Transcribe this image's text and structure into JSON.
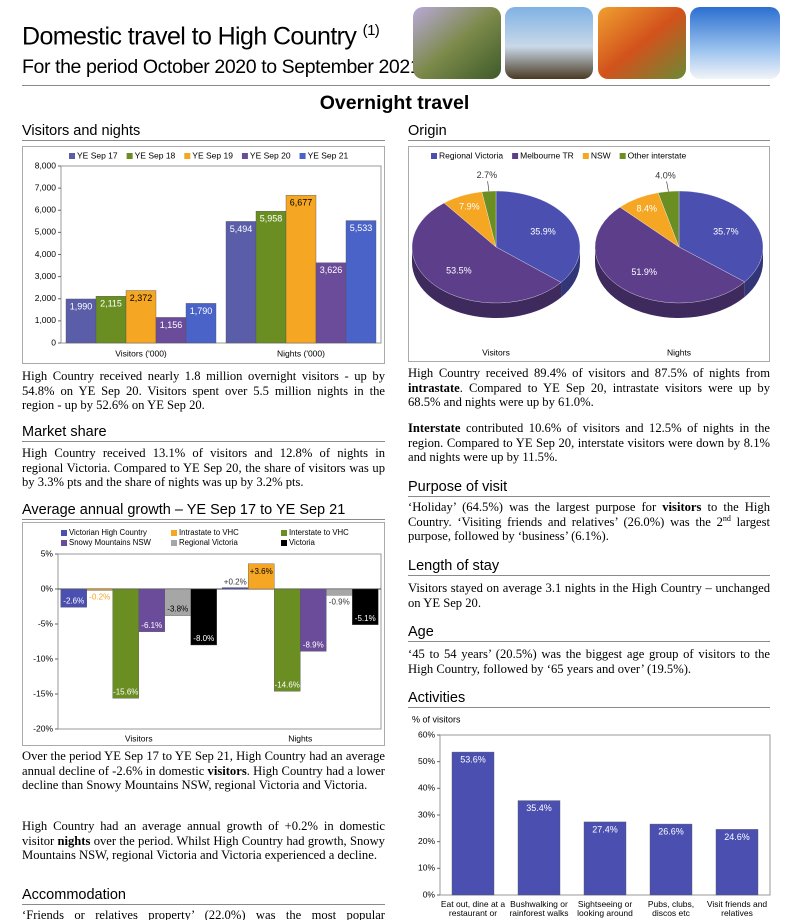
{
  "header": {
    "title": "Domestic travel to High Country",
    "footnote_ref": "(1)",
    "subtitle": "For the period October 2020 to September 2021"
  },
  "section_title": "Overnight travel",
  "sections": {
    "visitors_nights": {
      "heading": "Visitors and nights",
      "paragraphs": [
        [
          "High Country received nearly 1.8 million overnight visitors - up by 54.8% on YE Sep 20. Visitors spent over 5.5 million nights in the region - up by 52.6% on YE Sep 20."
        ]
      ]
    },
    "market_share": {
      "heading": "Market share",
      "paragraphs": [
        [
          "High Country received 13.1% of visitors and 12.8% of nights in regional Victoria. Compared to YE Sep 20, the share of visitors was up by 3.3% pts and the share of nights was up by 3.2% pts."
        ]
      ]
    },
    "growth": {
      "heading": "Average annual growth – YE Sep 17 to YE Sep 21",
      "paragraphs": [
        [
          "Over the period YE Sep 17 to YE Sep 21, High Country had an average annual decline of -2.6% in domestic ",
          "visitors",
          ". High Country had a lower decline than Snowy Mountains NSW, regional Victoria and Victoria."
        ],
        [
          "High Country had an average annual growth of +0.2% in domestic visitor ",
          "nights",
          " over the period. Whilst High Country had growth, Snowy Mountains NSW, regional Victoria and Victoria experienced a decline."
        ]
      ]
    },
    "accommodation": {
      "heading": "Accommodation",
      "paragraphs": [
        [
          "‘Friends or relatives property’ (22.0%) was the most popular"
        ]
      ]
    },
    "origin": {
      "heading": "Origin",
      "paragraphs": [
        [
          "High Country received 89.4% of visitors and 87.5% of nights from ",
          "intrastate",
          ". Compared to YE Sep 20, intrastate visitors were up by 68.5% and nights were up by 61.0%."
        ],
        [
          "Interstate",
          " contributed 10.6% of visitors and 12.5% of nights in the region. Compared to YE Sep 20, interstate visitors were down by 8.1% and nights were up by 11.5%."
        ]
      ]
    },
    "purpose": {
      "heading": "Purpose of visit",
      "paragraphs": [
        [
          "‘Holiday’ (64.5%) was the largest purpose for ",
          "visitors",
          " to the High Country. ‘Visiting friends and relatives’ (26.0%) was the 2",
          "nd",
          " largest purpose, followed by ‘business’ (6.1%)."
        ]
      ]
    },
    "length_of_stay": {
      "heading": "Length of stay",
      "paragraphs": [
        [
          "Visitors stayed on average 3.1 nights in the High Country – unchanged on YE Sep 20."
        ]
      ]
    },
    "age": {
      "heading": "Age",
      "paragraphs": [
        [
          "‘45 to 54 years’ (20.5%) was the biggest age group of visitors to the High Country, followed by ‘65 years and over’ (19.5%)."
        ]
      ]
    },
    "activities": {
      "heading": "Activities"
    }
  },
  "chart_data": [
    {
      "type": "bar",
      "categories": [
        "Visitors ('000)",
        "Nights ('000)"
      ],
      "series": [
        {
          "name": "YE Sep 17",
          "color": "#5a5ea8",
          "values": [
            1990,
            5494
          ],
          "value_labels": [
            "1,990",
            "5,494"
          ]
        },
        {
          "name": "YE Sep 18",
          "color": "#6b8e23",
          "values": [
            2115,
            5958
          ],
          "value_labels": [
            "2,115",
            "5,958"
          ]
        },
        {
          "name": "YE Sep 19",
          "color": "#f5a623",
          "values": [
            2372,
            6677
          ],
          "value_labels": [
            "2,372",
            "6,677"
          ]
        },
        {
          "name": "YE Sep 20",
          "color": "#6b4c9a",
          "values": [
            1156,
            3626
          ],
          "value_labels": [
            "1,156",
            "3,626"
          ]
        },
        {
          "name": "YE Sep 21",
          "color": "#4a63c9",
          "values": [
            1790,
            5533
          ],
          "value_labels": [
            "1,790",
            "5,533"
          ]
        }
      ],
      "ylim": [
        0,
        8000
      ],
      "yticks": [
        0,
        {
          "value": 1000,
          "label": "1,000"
        },
        {
          "value": 2000,
          "label": "2,000"
        },
        {
          "value": 3000,
          "label": "3,000"
        },
        {
          "value": 4000,
          "label": "4,000"
        },
        {
          "value": 5000,
          "label": "5,000"
        },
        {
          "value": 6000,
          "label": "6,000"
        },
        {
          "value": 7000,
          "label": "7,000"
        },
        {
          "value": 8000,
          "label": "8,000"
        }
      ]
    },
    {
      "type": "pie",
      "categories": [
        "Regional Victoria",
        "Melbourne TR",
        "NSW",
        "Other interstate"
      ],
      "colors": [
        "#4a4fb0",
        "#5c3e8a",
        "#f5a623",
        "#6b8e23"
      ],
      "series": [
        {
          "name": "Visitors",
          "values": [
            35.9,
            53.5,
            7.9,
            2.7
          ],
          "value_labels": [
            "35.9%",
            "53.5%",
            "7.9%",
            "2.7%"
          ]
        },
        {
          "name": "Nights",
          "values": [
            35.7,
            51.9,
            8.4,
            4.0
          ],
          "value_labels": [
            "35.7%",
            "51.9%",
            "8.4%",
            "4.0%"
          ]
        }
      ]
    },
    {
      "type": "bar",
      "categories": [
        "Visitors",
        "Nights"
      ],
      "series": [
        {
          "name": "Victorian High Country",
          "color": "#4a4fb0",
          "values": [
            -2.6,
            0.2
          ],
          "value_labels": [
            "-2.6%",
            "+0.2%"
          ]
        },
        {
          "name": "Intrastate to VHC",
          "color": "#f5a623",
          "values": [
            -0.2,
            3.6
          ],
          "value_labels": [
            "-0.2%",
            "+3.6%"
          ]
        },
        {
          "name": "Interstate to VHC",
          "color": "#6b8e23",
          "values": [
            -15.6,
            -14.6
          ],
          "value_labels": [
            "-15.6%",
            "-14.6%"
          ]
        },
        {
          "name": "Snowy Mountains NSW",
          "color": "#6b4c9a",
          "values": [
            -6.1,
            -8.9
          ],
          "value_labels": [
            "-6.1%",
            "-8.9%"
          ]
        },
        {
          "name": "Regional Victoria",
          "color": "#a6a6a6",
          "values": [
            -3.8,
            -0.9
          ],
          "value_labels": [
            "-3.8%",
            "-0.9%"
          ]
        },
        {
          "name": "Victoria",
          "color": "#000000",
          "values": [
            -8.0,
            -5.1
          ],
          "value_labels": [
            "-8.0%",
            "-5.1%"
          ]
        }
      ],
      "ylim": [
        -20,
        5
      ],
      "yticks": [
        {
          "value": 5,
          "label": "5%"
        },
        {
          "value": 0,
          "label": "0%"
        },
        {
          "value": -5,
          "label": "-5%"
        },
        {
          "value": -10,
          "label": "-10%"
        },
        {
          "value": -15,
          "label": "-15%"
        },
        {
          "value": -20,
          "label": "-20%"
        }
      ]
    },
    {
      "type": "bar",
      "ylabel": "% of visitors",
      "categories": [
        "Eat out, dine at a restaurant or",
        "Bushwalking or rainforest walks",
        "Sightseeing or looking around",
        "Pubs, clubs, discos etc",
        "Visit friends and relatives"
      ],
      "values": [
        53.6,
        35.4,
        27.4,
        26.6,
        24.6
      ],
      "value_labels": [
        "53.6%",
        "35.4%",
        "27.4%",
        "26.6%",
        "24.6%"
      ],
      "color": "#4a4fb0",
      "ylim": [
        0,
        60
      ],
      "yticks": [
        {
          "value": 0,
          "label": "0%"
        },
        {
          "value": 10,
          "label": "10%"
        },
        {
          "value": 20,
          "label": "20%"
        },
        {
          "value": 30,
          "label": "30%"
        },
        {
          "value": 40,
          "label": "40%"
        },
        {
          "value": 50,
          "label": "50%"
        },
        {
          "value": 60,
          "label": "60%"
        }
      ]
    }
  ]
}
